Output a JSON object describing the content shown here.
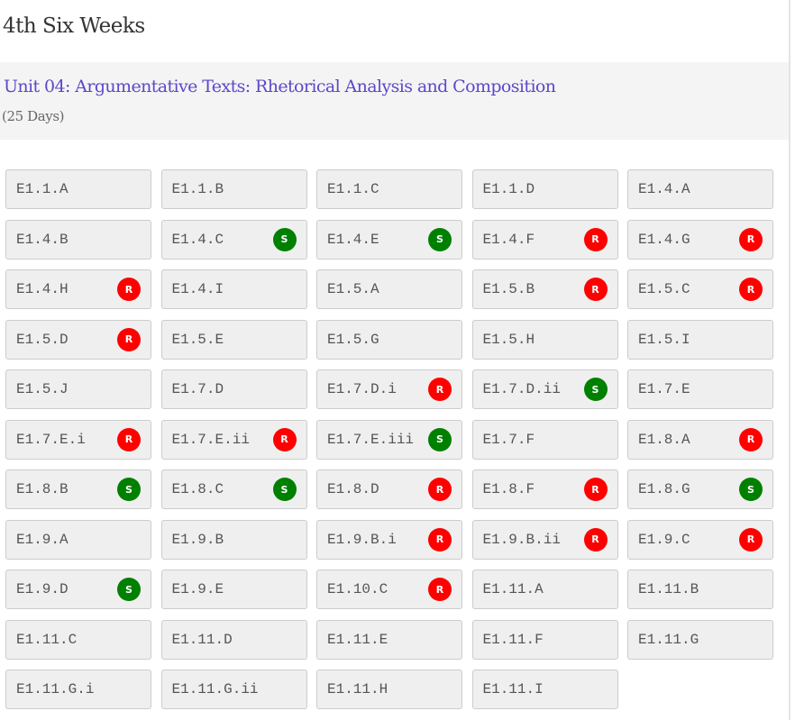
{
  "page_title": "4th Six Weeks",
  "unit": {
    "title": "Unit 04: Argumentative Texts: Rhetorical Analysis and Composition",
    "duration": "(25 Days)"
  },
  "badge_colors": {
    "R": "#ff0000",
    "S": "#008000"
  },
  "standards": [
    {
      "code": "E1.1.A",
      "badge": ""
    },
    {
      "code": "E1.1.B",
      "badge": ""
    },
    {
      "code": "E1.1.C",
      "badge": ""
    },
    {
      "code": "E1.1.D",
      "badge": ""
    },
    {
      "code": "E1.4.A",
      "badge": ""
    },
    {
      "code": "E1.4.B",
      "badge": ""
    },
    {
      "code": "E1.4.C",
      "badge": "S"
    },
    {
      "code": "E1.4.E",
      "badge": "S"
    },
    {
      "code": "E1.4.F",
      "badge": "R"
    },
    {
      "code": "E1.4.G",
      "badge": "R"
    },
    {
      "code": "E1.4.H",
      "badge": "R"
    },
    {
      "code": "E1.4.I",
      "badge": ""
    },
    {
      "code": "E1.5.A",
      "badge": ""
    },
    {
      "code": "E1.5.B",
      "badge": "R"
    },
    {
      "code": "E1.5.C",
      "badge": "R"
    },
    {
      "code": "E1.5.D",
      "badge": "R"
    },
    {
      "code": "E1.5.E",
      "badge": ""
    },
    {
      "code": "E1.5.G",
      "badge": ""
    },
    {
      "code": "E1.5.H",
      "badge": ""
    },
    {
      "code": "E1.5.I",
      "badge": ""
    },
    {
      "code": "E1.5.J",
      "badge": ""
    },
    {
      "code": "E1.7.D",
      "badge": ""
    },
    {
      "code": "E1.7.D.i",
      "badge": "R"
    },
    {
      "code": "E1.7.D.ii",
      "badge": "S"
    },
    {
      "code": "E1.7.E",
      "badge": ""
    },
    {
      "code": "E1.7.E.i",
      "badge": "R"
    },
    {
      "code": "E1.7.E.ii",
      "badge": "R"
    },
    {
      "code": "E1.7.E.iii",
      "badge": "S"
    },
    {
      "code": "E1.7.F",
      "badge": ""
    },
    {
      "code": "E1.8.A",
      "badge": "R"
    },
    {
      "code": "E1.8.B",
      "badge": "S"
    },
    {
      "code": "E1.8.C",
      "badge": "S"
    },
    {
      "code": "E1.8.D",
      "badge": "R"
    },
    {
      "code": "E1.8.F",
      "badge": "R"
    },
    {
      "code": "E1.8.G",
      "badge": "S"
    },
    {
      "code": "E1.9.A",
      "badge": ""
    },
    {
      "code": "E1.9.B",
      "badge": ""
    },
    {
      "code": "E1.9.B.i",
      "badge": "R"
    },
    {
      "code": "E1.9.B.ii",
      "badge": "R"
    },
    {
      "code": "E1.9.C",
      "badge": "R"
    },
    {
      "code": "E1.9.D",
      "badge": "S"
    },
    {
      "code": "E1.9.E",
      "badge": ""
    },
    {
      "code": "E1.10.C",
      "badge": "R"
    },
    {
      "code": "E1.11.A",
      "badge": ""
    },
    {
      "code": "E1.11.B",
      "badge": ""
    },
    {
      "code": "E1.11.C",
      "badge": ""
    },
    {
      "code": "E1.11.D",
      "badge": ""
    },
    {
      "code": "E1.11.E",
      "badge": ""
    },
    {
      "code": "E1.11.F",
      "badge": ""
    },
    {
      "code": "E1.11.G",
      "badge": ""
    },
    {
      "code": "E1.11.G.i",
      "badge": ""
    },
    {
      "code": "E1.11.G.ii",
      "badge": ""
    },
    {
      "code": "E1.11.H",
      "badge": ""
    },
    {
      "code": "E1.11.I",
      "badge": ""
    }
  ]
}
